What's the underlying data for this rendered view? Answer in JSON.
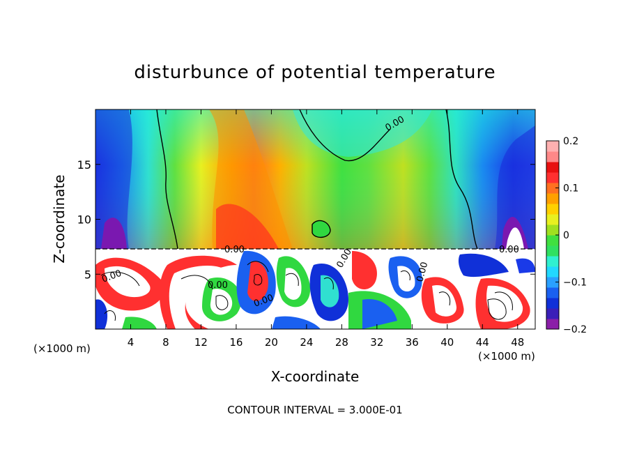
{
  "chart_data": {
    "type": "heatmap",
    "title": "disturbunce of potential temperature",
    "xlabel": "X-coordinate",
    "ylabel": "Z-coordinate",
    "x_unit": "(×1000 m)",
    "y_unit": "(×1000 m)",
    "xlim": [
      0,
      50
    ],
    "ylim": [
      0,
      20
    ],
    "x_ticks": [
      4,
      8,
      12,
      16,
      20,
      24,
      28,
      32,
      36,
      40,
      44,
      48
    ],
    "y_ticks": [
      5,
      10,
      15
    ],
    "colorbar": {
      "range": [
        -0.2,
        0.2
      ],
      "ticks": [
        0.2,
        0.1,
        0,
        -0.1,
        -0.2
      ],
      "tick_labels": [
        "0.2",
        "0.1",
        "0",
        "−0.1",
        "−0.2"
      ],
      "colors": [
        "#8b1fa8",
        "#3a1fb8",
        "#1030d8",
        "#1a60f0",
        "#2aa0ff",
        "#22d8ff",
        "#30f0d0",
        "#30e060",
        "#40e040",
        "#a0e020",
        "#e8f020",
        "#ffd000",
        "#ffa000",
        "#ff7020",
        "#ff3030",
        "#e81010",
        "#ff8888",
        "#ffb0b0"
      ]
    },
    "contour_labels": [
      "0.00",
      "0.00",
      "0.00",
      "0.00",
      "0.00",
      "0.00",
      "0.00",
      "0.00"
    ],
    "footnote": "CONTOUR INTERVAL = 3.000E-01"
  }
}
